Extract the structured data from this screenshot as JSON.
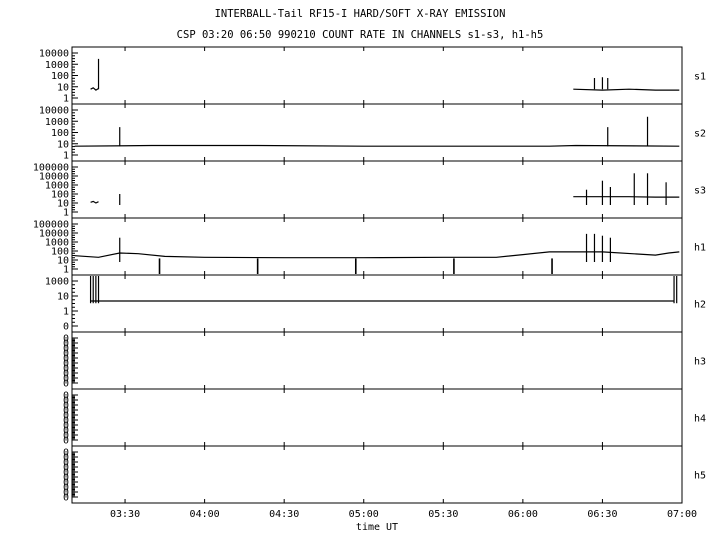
{
  "header": {
    "title": "INTERBALL-Tail RF15-I HARD/SOFT X-RAY EMISSION",
    "subtitle": "CSP 03:20 06:50 990210  COUNT RATE IN CHANNELS s1-s3, h1-h5"
  },
  "chart_data": {
    "type": "line",
    "xlabel": "time UT",
    "x_range": [
      "03:10",
      "07:00"
    ],
    "x_ticks": [
      "03:30",
      "04:00",
      "04:30",
      "05:00",
      "05:30",
      "06:00",
      "06:30",
      "07:00"
    ],
    "y_scale": "log",
    "grid": false,
    "panels": [
      {
        "name": "s1",
        "y_ticks": [
          "10000",
          "1000",
          "100",
          "10",
          "1"
        ],
        "segments": [
          {
            "points": [
              [
                "03:17",
                6
              ],
              [
                "03:18",
                8
              ],
              [
                "03:19",
                5
              ],
              [
                "03:20",
                7
              ]
            ]
          },
          {
            "points": [
              [
                "06:19",
                6
              ],
              [
                "06:30",
                5
              ],
              [
                "06:40",
                6
              ],
              [
                "06:50",
                5
              ],
              [
                "06:59",
                5
              ]
            ]
          }
        ],
        "spikes": [
          [
            "03:20",
            3000
          ],
          [
            "06:27",
            60
          ],
          [
            "06:30",
            70
          ],
          [
            "06:32",
            60
          ]
        ]
      },
      {
        "name": "s2",
        "y_ticks": [
          "10000",
          "1000",
          "100",
          "10",
          "1"
        ],
        "segments": [
          {
            "points": [
              [
                "03:11",
                6
              ],
              [
                "03:40",
                7
              ],
              [
                "04:20",
                7
              ],
              [
                "05:00",
                6
              ],
              [
                "05:40",
                6
              ],
              [
                "06:10",
                6
              ],
              [
                "06:20",
                7
              ],
              [
                "06:59",
                6
              ]
            ]
          }
        ],
        "spikes": [
          [
            "03:28",
            300
          ],
          [
            "06:32",
            300
          ],
          [
            "06:47",
            2500
          ]
        ]
      },
      {
        "name": "s3",
        "y_ticks": [
          "100000",
          "10000",
          "1000",
          "100",
          "10",
          "1"
        ],
        "segments": [
          {
            "points": [
              [
                "03:17",
                12
              ],
              [
                "03:18",
                15
              ],
              [
                "03:19",
                10
              ],
              [
                "03:20",
                14
              ]
            ]
          },
          {
            "points": [
              [
                "06:19",
                50
              ],
              [
                "06:30",
                50
              ],
              [
                "06:40",
                50
              ],
              [
                "06:50",
                45
              ],
              [
                "06:59",
                45
              ]
            ]
          }
        ],
        "spikes": [
          [
            "03:28",
            100
          ],
          [
            "06:24",
            300
          ],
          [
            "06:30",
            3000
          ],
          [
            "06:33",
            600
          ],
          [
            "06:42",
            20000
          ],
          [
            "06:47",
            20000
          ],
          [
            "06:54",
            2000
          ]
        ]
      },
      {
        "name": "h1",
        "y_ticks": [
          "100000",
          "10000",
          "1000",
          "100",
          "10",
          "1"
        ],
        "segments": [
          {
            "points": [
              [
                "03:11",
                30
              ],
              [
                "03:20",
                20
              ],
              [
                "03:28",
                60
              ],
              [
                "03:35",
                50
              ],
              [
                "03:45",
                25
              ],
              [
                "04:00",
                20
              ],
              [
                "04:30",
                18
              ],
              [
                "05:00",
                18
              ],
              [
                "05:30",
                20
              ],
              [
                "05:50",
                20
              ],
              [
                "06:00",
                40
              ],
              [
                "06:10",
                80
              ],
              [
                "06:30",
                80
              ],
              [
                "06:50",
                35
              ],
              [
                "06:55",
                60
              ],
              [
                "06:59",
                80
              ]
            ]
          }
        ],
        "spikes": [
          [
            "03:28",
            3000
          ],
          [
            "06:24",
            8000
          ],
          [
            "06:27",
            8000
          ],
          [
            "06:30",
            5000
          ],
          [
            "06:33",
            3000
          ]
        ],
        "dips": [
          "03:43",
          "04:20",
          "04:57",
          "05:34",
          "06:11"
        ]
      },
      {
        "name": "h2",
        "y_ticks": [
          "1000",
          "10",
          "1",
          "0"
        ],
        "segments": [
          {
            "points": [
              [
                "03:17",
                10
              ],
              [
                "06:57",
                10
              ]
            ]
          }
        ],
        "spikes": [
          [
            "03:17",
            5000
          ],
          [
            "03:18",
            5000
          ],
          [
            "03:19",
            5000
          ],
          [
            "03:20",
            5000
          ],
          [
            "06:57",
            5000
          ],
          [
            "06:58",
            5000
          ]
        ]
      },
      {
        "name": "h3",
        "y_ticks": [
          "0",
          "0",
          "0",
          "0",
          "0",
          "0",
          "0",
          "0",
          "0",
          "0"
        ],
        "segments": [],
        "spikes": []
      },
      {
        "name": "h4",
        "y_ticks": [
          "0",
          "0",
          "0",
          "0",
          "0",
          "0",
          "0",
          "0",
          "0",
          "0"
        ],
        "segments": [],
        "spikes": []
      },
      {
        "name": "h5",
        "y_ticks": [
          "0",
          "0",
          "0",
          "0",
          "0",
          "0",
          "0",
          "0",
          "0",
          "0"
        ],
        "segments": [],
        "spikes": []
      }
    ]
  }
}
